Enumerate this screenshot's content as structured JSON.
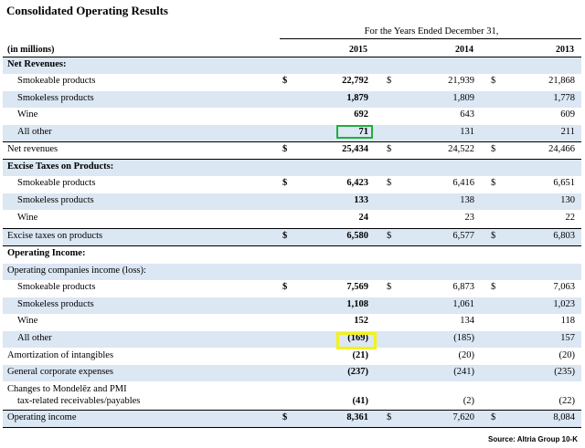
{
  "title": "Consolidated Operating Results",
  "header": {
    "period": "For the Years Ended December 31,",
    "units": "(in millions)",
    "years": [
      "2015",
      "2014",
      "2013"
    ]
  },
  "source": "Source: Altria Group 10-K",
  "highlight_colors": {
    "green": "#1fae3c",
    "yellow": "#f2f21a"
  },
  "shade_color": "#dbe7f3",
  "rows": [
    {
      "label": "Net Revenues:",
      "style": "section",
      "values": [],
      "dollar": false
    },
    {
      "label": "Smokeable products",
      "style": "item",
      "values": [
        "22,792",
        "21,939",
        "21,868"
      ],
      "dollar": true
    },
    {
      "label": "Smokeless products",
      "style": "item",
      "values": [
        "1,879",
        "1,809",
        "1,778"
      ],
      "dollar": false
    },
    {
      "label": "Wine",
      "style": "item",
      "values": [
        "692",
        "643",
        "609"
      ],
      "dollar": false
    },
    {
      "label": "All other",
      "style": "item",
      "values": [
        "71",
        "131",
        "211"
      ],
      "dollar": false
    },
    {
      "label": "Net revenues",
      "style": "total",
      "values": [
        "25,434",
        "24,522",
        "24,466"
      ],
      "dollar": true
    },
    {
      "label": "Excise Taxes on Products:",
      "style": "section",
      "values": [],
      "dollar": false
    },
    {
      "label": "Smokeable products",
      "style": "item",
      "values": [
        "6,423",
        "6,416",
        "6,651"
      ],
      "dollar": true
    },
    {
      "label": "Smokeless products",
      "style": "item",
      "values": [
        "133",
        "138",
        "130"
      ],
      "dollar": false
    },
    {
      "label": "Wine",
      "style": "item",
      "values": [
        "24",
        "23",
        "22"
      ],
      "dollar": false
    },
    {
      "label": "Excise taxes on products",
      "style": "total",
      "values": [
        "6,580",
        "6,577",
        "6,803"
      ],
      "dollar": true
    },
    {
      "label": "Operating Income:",
      "style": "section",
      "values": [],
      "dollar": false
    },
    {
      "label": "Operating companies income (loss):",
      "style": "sub",
      "values": [],
      "dollar": false
    },
    {
      "label": "Smokeable products",
      "style": "item",
      "values": [
        "7,569",
        "6,873",
        "7,063"
      ],
      "dollar": true
    },
    {
      "label": "Smokeless products",
      "style": "item",
      "values": [
        "1,108",
        "1,061",
        "1,023"
      ],
      "dollar": false
    },
    {
      "label": "Wine",
      "style": "item",
      "values": [
        "152",
        "134",
        "118"
      ],
      "dollar": false
    },
    {
      "label": "All other",
      "style": "item",
      "values": [
        "(169)",
        "(185)",
        "157"
      ],
      "dollar": false
    },
    {
      "label": "Amortization of intangibles",
      "style": "sub",
      "values": [
        "(21)",
        "(20)",
        "(20)"
      ],
      "dollar": false
    },
    {
      "label": "General corporate expenses",
      "style": "sub",
      "values": [
        "(237)",
        "(241)",
        "(235)"
      ],
      "dollar": false
    },
    {
      "label": "Changes to Mondelēz and PMI",
      "label2": "tax-related receivables/payables",
      "style": "double",
      "values": [
        "(41)",
        "(2)",
        "(22)"
      ],
      "dollar": false
    },
    {
      "label": "Operating income",
      "style": "total",
      "values": [
        "8,361",
        "7,620",
        "8,084"
      ],
      "dollar": true
    }
  ]
}
